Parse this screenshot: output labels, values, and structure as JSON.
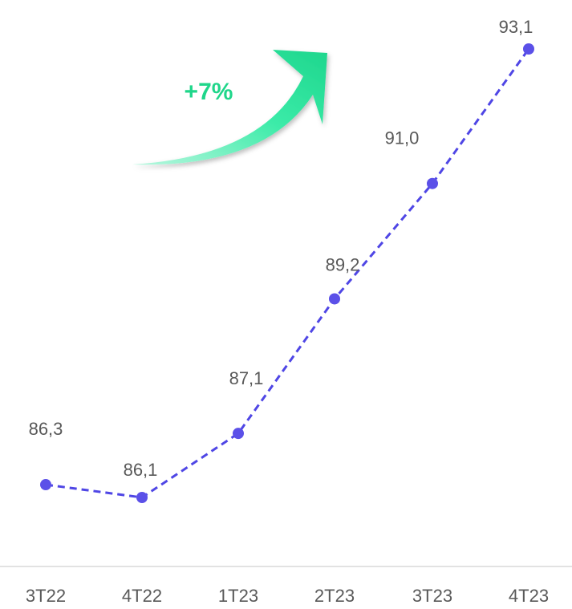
{
  "chart_data": {
    "type": "line",
    "categories": [
      "3T22",
      "4T22",
      "1T23",
      "2T23",
      "3T23",
      "4T23"
    ],
    "values": [
      86.3,
      86.1,
      87.1,
      89.2,
      91.0,
      93.1
    ],
    "data_labels": [
      "86,3",
      "86,1",
      "87,1",
      "89,2",
      "91,0",
      "93,1"
    ],
    "line_style": "dashed",
    "colors": {
      "line": "#4F46E5",
      "marker": "#5B50E8",
      "growth": "#22E39A",
      "growth_text": "#1FD68A",
      "axis": "#D9D9D9",
      "label": "#595959"
    }
  },
  "annotation": {
    "text": "+7%",
    "icon": "curved-up-arrow-icon"
  }
}
